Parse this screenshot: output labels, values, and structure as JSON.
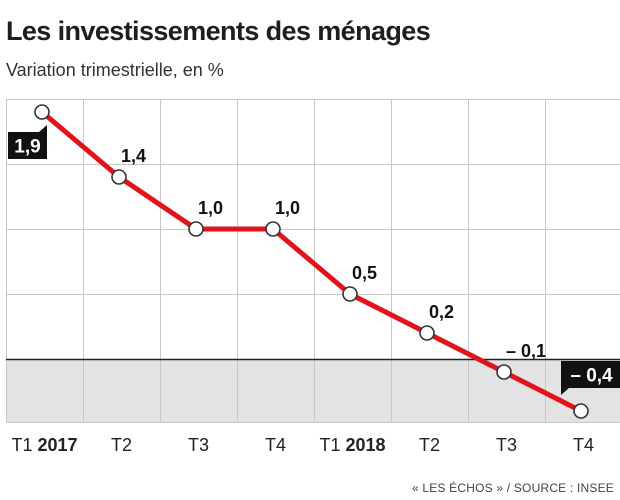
{
  "title": "Les investissements des ménages",
  "subtitle": "Variation trimestrielle, en %",
  "source": "« LES ÉCHOS » / SOURCE : INSEE",
  "colors": {
    "line": "#e3131b",
    "negative_area": "#e3e3e3",
    "grid": "#c8c8c8",
    "zero_line": "#222222",
    "label_box": "#111111"
  },
  "chart_data": {
    "type": "line",
    "categories": [
      {
        "quarter": "T1",
        "year": "2017"
      },
      {
        "quarter": "T2",
        "year": ""
      },
      {
        "quarter": "T3",
        "year": ""
      },
      {
        "quarter": "T4",
        "year": ""
      },
      {
        "quarter": "T1",
        "year": "2018"
      },
      {
        "quarter": "T2",
        "year": ""
      },
      {
        "quarter": "T3",
        "year": ""
      },
      {
        "quarter": "T4",
        "year": ""
      }
    ],
    "values": [
      1.9,
      1.4,
      1.0,
      1.0,
      0.5,
      0.2,
      -0.1,
      -0.4
    ],
    "data_labels": [
      "1,9",
      "1,4",
      "1,0",
      "1,0",
      "0,5",
      "0,2",
      "– 0,1",
      "– 0,4"
    ],
    "highlighted_labels": [
      0,
      7
    ],
    "ylim": [
      -0.5,
      2.0
    ],
    "grid": true,
    "negative_region_shaded": true
  }
}
